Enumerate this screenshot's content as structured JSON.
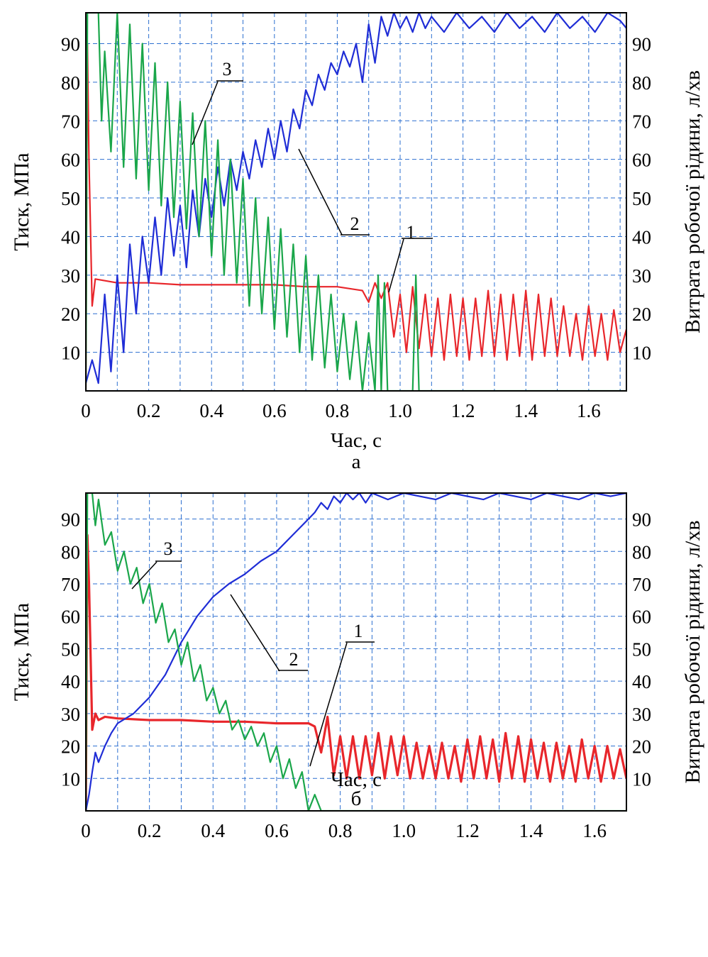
{
  "chart_data": [
    {
      "type": "line",
      "panel_label": "а",
      "xlabel": "Час, с",
      "ylabel_left": "Тиск, МПа",
      "ylabel_right": "Витрата робочої рідини, л/хв",
      "xlim": [
        0,
        1.72
      ],
      "ylim": [
        0,
        98
      ],
      "x_ticks": [
        "0",
        "0.2",
        "0.4",
        "0.6",
        "0.8",
        "1.0",
        "1.2",
        "1.4",
        "1.6"
      ],
      "y_ticks": [
        "10",
        "20",
        "30",
        "40",
        "50",
        "60",
        "70",
        "80",
        "90"
      ],
      "grid": true,
      "series": [
        {
          "name": "1",
          "color": "#e8262b",
          "x": [
            0.0,
            0.005,
            0.01,
            0.02,
            0.03,
            0.1,
            0.2,
            0.3,
            0.4,
            0.5,
            0.6,
            0.7,
            0.8,
            0.88,
            0.9,
            0.92,
            0.94,
            0.96,
            0.98,
            1.0,
            1.02,
            1.04,
            1.06,
            1.08,
            1.1,
            1.12,
            1.14,
            1.16,
            1.18,
            1.2,
            1.22,
            1.24,
            1.26,
            1.28,
            1.3,
            1.32,
            1.34,
            1.36,
            1.38,
            1.4,
            1.42,
            1.44,
            1.46,
            1.48,
            1.5,
            1.52,
            1.54,
            1.56,
            1.58,
            1.6,
            1.62,
            1.64,
            1.66,
            1.68,
            1.7,
            1.72
          ],
          "y": [
            0,
            90,
            60,
            22,
            29,
            28,
            28,
            27.5,
            27.5,
            27.5,
            27.5,
            27,
            27,
            26,
            23,
            28,
            24,
            28,
            14,
            25,
            10,
            27,
            11,
            25,
            9,
            24,
            8,
            25,
            9,
            24,
            8,
            24,
            9,
            26,
            9,
            25,
            8,
            25,
            9,
            26,
            8,
            25,
            9,
            24,
            9,
            22,
            9,
            20,
            8,
            22,
            9,
            20,
            8,
            21,
            10,
            16
          ]
        },
        {
          "name": "2",
          "color": "#1f2dd6",
          "x": [
            0.0,
            0.02,
            0.04,
            0.06,
            0.08,
            0.1,
            0.12,
            0.14,
            0.16,
            0.18,
            0.2,
            0.22,
            0.24,
            0.26,
            0.28,
            0.3,
            0.32,
            0.34,
            0.36,
            0.38,
            0.4,
            0.42,
            0.44,
            0.46,
            0.48,
            0.5,
            0.52,
            0.54,
            0.56,
            0.58,
            0.6,
            0.62,
            0.64,
            0.66,
            0.68,
            0.7,
            0.72,
            0.74,
            0.76,
            0.78,
            0.8,
            0.82,
            0.84,
            0.86,
            0.88,
            0.9,
            0.92,
            0.94,
            0.96,
            0.98,
            1.0,
            1.02,
            1.04,
            1.06,
            1.08,
            1.1,
            1.14,
            1.18,
            1.22,
            1.26,
            1.3,
            1.34,
            1.38,
            1.42,
            1.46,
            1.5,
            1.54,
            1.58,
            1.62,
            1.66,
            1.7,
            1.72
          ],
          "y": [
            2,
            8,
            2,
            25,
            5,
            30,
            10,
            38,
            20,
            40,
            28,
            45,
            30,
            50,
            35,
            48,
            32,
            52,
            40,
            55,
            45,
            58,
            48,
            60,
            52,
            62,
            55,
            65,
            58,
            68,
            60,
            70,
            62,
            73,
            68,
            78,
            74,
            82,
            78,
            85,
            82,
            88,
            84,
            90,
            80,
            95,
            85,
            97,
            92,
            98,
            94,
            97,
            93,
            98,
            94,
            97,
            93,
            98,
            94,
            97,
            93,
            98,
            94,
            97,
            93,
            98,
            94,
            97,
            93,
            98,
            96,
            94
          ]
        },
        {
          "name": "3",
          "color": "#1aa64a",
          "x": [
            0.0,
            0.005,
            0.01,
            0.04,
            0.05,
            0.06,
            0.08,
            0.1,
            0.12,
            0.14,
            0.16,
            0.18,
            0.2,
            0.22,
            0.24,
            0.26,
            0.28,
            0.3,
            0.32,
            0.34,
            0.36,
            0.38,
            0.4,
            0.42,
            0.44,
            0.46,
            0.48,
            0.5,
            0.52,
            0.54,
            0.56,
            0.58,
            0.6,
            0.62,
            0.64,
            0.66,
            0.68,
            0.7,
            0.72,
            0.74,
            0.76,
            0.78,
            0.8,
            0.82,
            0.84,
            0.86,
            0.88,
            0.9,
            0.92,
            0.93,
            0.94,
            0.95,
            0.96,
            0.98,
            1.0,
            1.02,
            1.04,
            1.05,
            1.06,
            1.2,
            1.4,
            1.6,
            1.72
          ],
          "y": [
            0,
            98,
            98,
            98,
            70,
            88,
            62,
            98,
            58,
            95,
            55,
            90,
            52,
            85,
            48,
            80,
            45,
            75,
            42,
            72,
            40,
            70,
            35,
            65,
            30,
            60,
            28,
            55,
            22,
            50,
            20,
            45,
            16,
            42,
            14,
            38,
            10,
            35,
            8,
            30,
            6,
            25,
            5,
            20,
            3,
            18,
            0,
            15,
            0,
            30,
            0,
            28,
            0,
            0,
            0,
            0,
            0,
            30,
            0,
            0,
            0,
            0,
            0
          ]
        }
      ],
      "annotations": [
        {
          "text": "1",
          "target_series": "1",
          "x": 0.93,
          "y": 25
        },
        {
          "text": "2",
          "target_series": "2",
          "x": 0.67,
          "y": 63
        },
        {
          "text": "3",
          "target_series": "3",
          "x": 0.33,
          "y": 64
        }
      ]
    },
    {
      "type": "line",
      "panel_label": "б",
      "xlabel": "Час, с",
      "ylabel_left": "Тиск, МПа",
      "ylabel_right": "Витрата робочої рідини, л/хв",
      "xlim": [
        0,
        1.7
      ],
      "ylim": [
        0,
        98
      ],
      "x_ticks": [
        "0",
        "0.2",
        "0.4",
        "0.6",
        "0.8",
        "1.0",
        "1.2",
        "1.4",
        "1.6"
      ],
      "y_ticks": [
        "10",
        "20",
        "30",
        "40",
        "50",
        "60",
        "70",
        "80",
        "90"
      ],
      "grid": true,
      "series": [
        {
          "name": "1",
          "color": "#e8262b",
          "x": [
            0.0,
            0.005,
            0.01,
            0.02,
            0.03,
            0.04,
            0.06,
            0.1,
            0.2,
            0.3,
            0.4,
            0.5,
            0.6,
            0.7,
            0.72,
            0.74,
            0.76,
            0.78,
            0.8,
            0.82,
            0.84,
            0.86,
            0.88,
            0.9,
            0.92,
            0.94,
            0.96,
            0.98,
            1.0,
            1.02,
            1.04,
            1.06,
            1.08,
            1.1,
            1.12,
            1.14,
            1.16,
            1.18,
            1.2,
            1.22,
            1.24,
            1.26,
            1.28,
            1.3,
            1.32,
            1.34,
            1.36,
            1.38,
            1.4,
            1.42,
            1.44,
            1.46,
            1.48,
            1.5,
            1.52,
            1.54,
            1.56,
            1.58,
            1.6,
            1.62,
            1.64,
            1.66,
            1.68,
            1.7
          ],
          "y": [
            0,
            85,
            70,
            25,
            30,
            28,
            29,
            28.5,
            28,
            28,
            27.5,
            27.5,
            27,
            27,
            26,
            18,
            29,
            11,
            23,
            10,
            23,
            10,
            23,
            11,
            24,
            10,
            23,
            11,
            23,
            10,
            21,
            10,
            20,
            10,
            21,
            10,
            20,
            9,
            22,
            10,
            23,
            10,
            22,
            9,
            24,
            10,
            23,
            9,
            22,
            10,
            21,
            9,
            21,
            10,
            20,
            9,
            22,
            10,
            20,
            9,
            20,
            10,
            19,
            10
          ]
        },
        {
          "name": "2",
          "color": "#1f2dd6",
          "x": [
            0.0,
            0.01,
            0.02,
            0.03,
            0.04,
            0.06,
            0.08,
            0.1,
            0.15,
            0.2,
            0.25,
            0.3,
            0.35,
            0.4,
            0.45,
            0.5,
            0.55,
            0.6,
            0.65,
            0.7,
            0.72,
            0.74,
            0.76,
            0.78,
            0.8,
            0.82,
            0.84,
            0.86,
            0.88,
            0.9,
            0.95,
            1.0,
            1.05,
            1.1,
            1.15,
            1.2,
            1.25,
            1.3,
            1.35,
            1.4,
            1.45,
            1.5,
            1.55,
            1.6,
            1.65,
            1.7
          ],
          "y": [
            0,
            5,
            12,
            18,
            15,
            20,
            24,
            27,
            30,
            35,
            42,
            52,
            60,
            66,
            70,
            73,
            77,
            80,
            85,
            90,
            92,
            95,
            93,
            97,
            95,
            98,
            96,
            98,
            95,
            98,
            96,
            98,
            97,
            96,
            98,
            97,
            96,
            98,
            97,
            96,
            98,
            97,
            96,
            98,
            97,
            98
          ]
        },
        {
          "name": "3",
          "color": "#1aa64a",
          "x": [
            0.0,
            0.005,
            0.02,
            0.03,
            0.04,
            0.06,
            0.08,
            0.1,
            0.12,
            0.14,
            0.16,
            0.18,
            0.2,
            0.22,
            0.24,
            0.26,
            0.28,
            0.3,
            0.32,
            0.34,
            0.36,
            0.38,
            0.4,
            0.42,
            0.44,
            0.46,
            0.48,
            0.5,
            0.52,
            0.54,
            0.56,
            0.58,
            0.6,
            0.62,
            0.64,
            0.66,
            0.68,
            0.7,
            0.72,
            0.74,
            0.8,
            1.0,
            1.2,
            1.4,
            1.6,
            1.7
          ],
          "y": [
            0,
            98,
            98,
            88,
            96,
            82,
            86,
            74,
            80,
            70,
            75,
            64,
            70,
            58,
            64,
            52,
            56,
            45,
            52,
            40,
            45,
            34,
            38,
            30,
            34,
            25,
            28,
            22,
            26,
            20,
            24,
            15,
            20,
            10,
            16,
            7,
            12,
            0,
            5,
            0,
            0,
            0,
            0,
            0,
            0,
            0
          ]
        }
      ],
      "annotations": [
        {
          "text": "1",
          "target_series": "1",
          "x": 0.71,
          "y": 28
        },
        {
          "text": "2",
          "target_series": "2",
          "x": 0.46,
          "y": 67
        },
        {
          "text": "3",
          "target_series": "3",
          "x": 0.13,
          "y": 72
        }
      ]
    }
  ]
}
